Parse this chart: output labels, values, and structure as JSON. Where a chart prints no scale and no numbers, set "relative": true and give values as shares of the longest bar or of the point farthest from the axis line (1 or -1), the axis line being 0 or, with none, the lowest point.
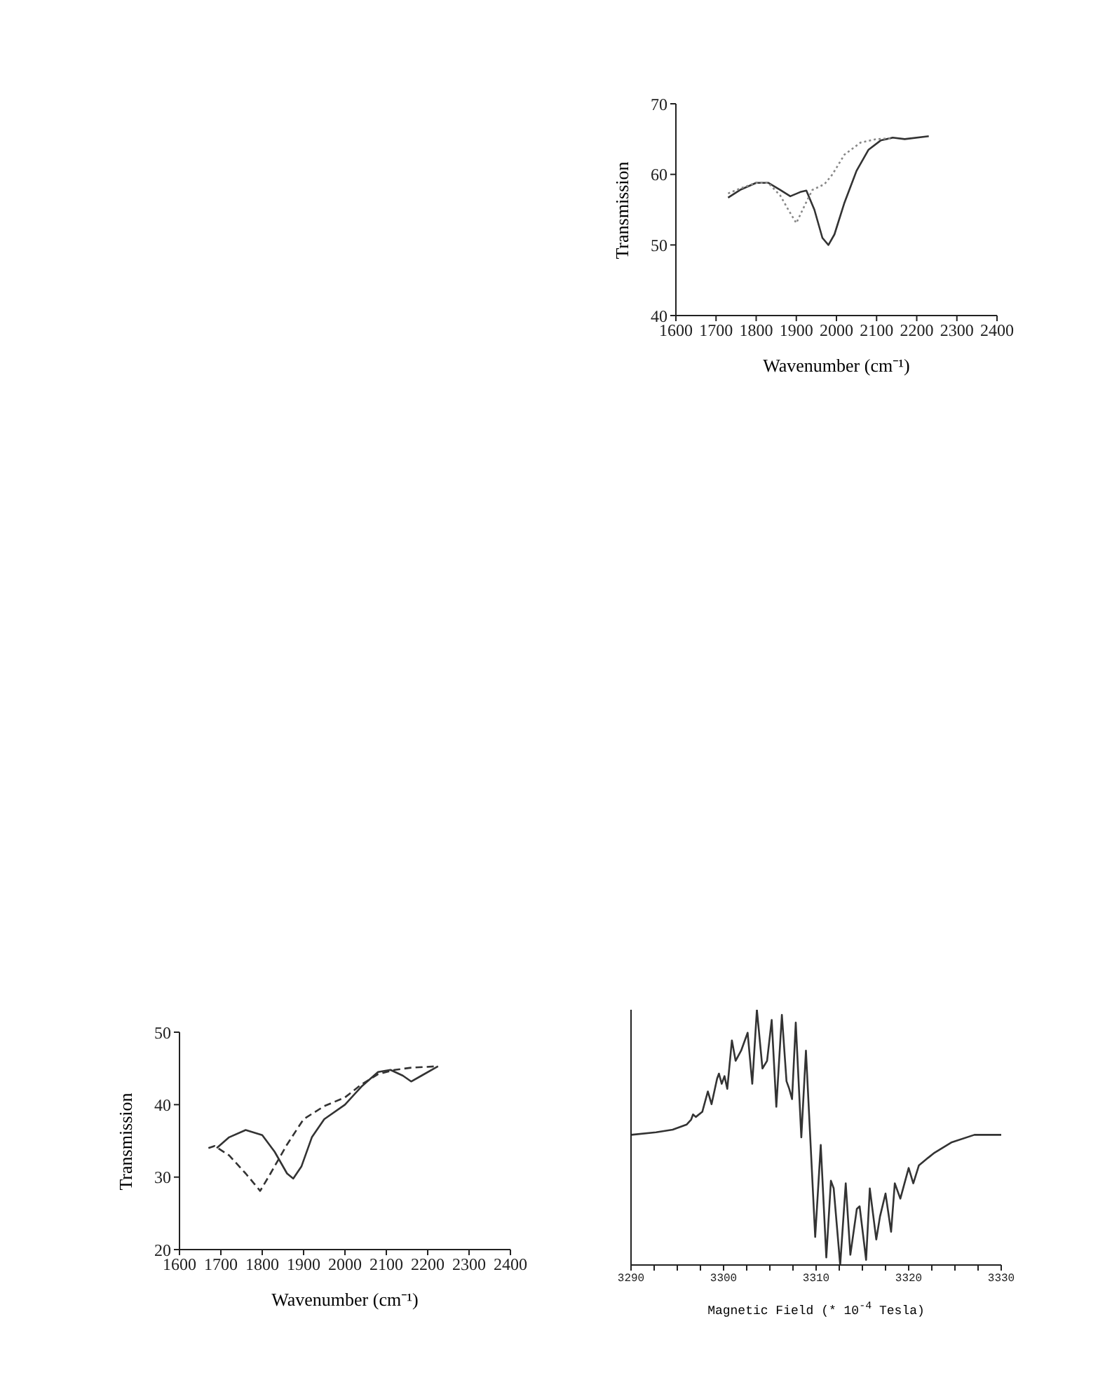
{
  "chart_data": [
    {
      "type": "line",
      "xlabel": "Wavenumber (cm⁻¹)",
      "ylabel": "Transmission",
      "xlim": [
        1600,
        2400
      ],
      "xticks": [
        1600,
        1700,
        1800,
        1900,
        2000,
        2100,
        2200,
        2300,
        2400
      ],
      "ylim": [
        40,
        70
      ],
      "yticks": [
        40,
        50,
        60,
        70
      ],
      "series": [
        {
          "color": "#333333",
          "line_style": "solid",
          "x": [
            1730,
            1760,
            1800,
            1830,
            1860,
            1885,
            1910,
            1925,
            1945,
            1965,
            1980,
            1995,
            2020,
            2050,
            2080,
            2110,
            2140,
            2170,
            2230
          ],
          "values": [
            56.7,
            57.8,
            58.8,
            58.8,
            57.8,
            56.9,
            57.5,
            57.7,
            55,
            51,
            50,
            51.5,
            56,
            60.5,
            63.5,
            64.8,
            65.2,
            65,
            65.4
          ]
        },
        {
          "color": "#888888",
          "line_style": "dotted",
          "x": [
            1730,
            1760,
            1800,
            1830,
            1860,
            1880,
            1900,
            1920,
            1940,
            1970,
            1990,
            2020,
            2060,
            2100,
            2140
          ],
          "values": [
            57.3,
            58,
            58.8,
            58.8,
            57,
            55,
            53.1,
            55.5,
            57.8,
            58.6,
            60,
            62.8,
            64.5,
            65,
            65.1
          ]
        }
      ]
    },
    {
      "type": "line",
      "xlabel": "Wavenumber (cm⁻¹)",
      "ylabel": "Transmission",
      "xlim": [
        1600,
        2400
      ],
      "xticks": [
        1600,
        1700,
        1800,
        1900,
        2000,
        2100,
        2200,
        2300,
        2400
      ],
      "ylim": [
        20,
        50
      ],
      "yticks": [
        20,
        30,
        40,
        50
      ],
      "series": [
        {
          "color": "#333333",
          "line_style": "solid",
          "x": [
            1690,
            1720,
            1760,
            1800,
            1830,
            1860,
            1875,
            1895,
            1920,
            1950,
            2000,
            2040,
            2080,
            2110,
            2140,
            2160,
            2185,
            2225
          ],
          "values": [
            34,
            35.5,
            36.5,
            35.8,
            33.5,
            30.5,
            29.8,
            31.5,
            35.5,
            38,
            40,
            42.5,
            44.5,
            44.8,
            44,
            43.2,
            44,
            45.3
          ]
        },
        {
          "color": "#333333",
          "line_style": "dashed",
          "x": [
            1670,
            1685,
            1720,
            1760,
            1795,
            1820,
            1860,
            1900,
            1950,
            2000,
            2040,
            2080,
            2120,
            2160,
            2225
          ],
          "values": [
            34,
            34.3,
            33,
            30.5,
            28.1,
            30.5,
            34.5,
            38,
            39.8,
            41,
            42.8,
            44.2,
            44.8,
            45.1,
            45.3
          ]
        }
      ]
    },
    {
      "type": "line",
      "relative": true,
      "tick_labels": "x",
      "xlabel": "Magnetic Field (* 10$^{-4}$ Tesla)",
      "xlim": [
        3290,
        3330
      ],
      "xticks": [
        3290,
        {
          "value": 3292.5,
          "label": null
        },
        {
          "value": 3295,
          "label": null
        },
        {
          "value": 3297.5,
          "label": null
        },
        3300,
        {
          "value": 3302.5,
          "label": null
        },
        {
          "value": 3305,
          "label": null
        },
        {
          "value": 3307.5,
          "label": null
        },
        3310,
        {
          "value": 3312.5,
          "label": null
        },
        {
          "value": 3315,
          "label": null
        },
        {
          "value": 3317.5,
          "label": null
        },
        3320,
        {
          "value": 3322.5,
          "label": null
        },
        {
          "value": 3325,
          "label": null
        },
        {
          "value": 3327.5,
          "label": null
        },
        3330
      ],
      "series": [
        {
          "color": "#333333",
          "x": [
            3290,
            3292.7,
            3294.5,
            3296.0,
            3296.5,
            3296.7,
            3297.0,
            3297.7,
            3298.3,
            3298.7,
            3299.3,
            3299.5,
            3299.8,
            3300.1,
            3300.4,
            3300.9,
            3301.3,
            3301.9,
            3302.6,
            3303.1,
            3303.6,
            3304.2,
            3304.7,
            3305.2,
            3305.7,
            3306.3,
            3306.8,
            3307.1,
            3307.4,
            3307.8,
            3308.4,
            3308.9,
            3309.9,
            3310.5,
            3311.1,
            3311.6,
            3311.9,
            3312.6,
            3313.2,
            3313.7,
            3314.4,
            3314.7,
            3315.4,
            3315.8,
            3316.5,
            3316.9,
            3317.5,
            3318.1,
            3318.5,
            3319.1,
            3320.0,
            3320.5,
            3321.1,
            3322.1,
            3322.8,
            3324.6,
            3327.1,
            3330
          ],
          "values": [
            0.51,
            0.52,
            0.53,
            0.55,
            0.57,
            0.59,
            0.58,
            0.6,
            0.68,
            0.63,
            0.73,
            0.75,
            0.71,
            0.74,
            0.69,
            0.88,
            0.8,
            0.84,
            0.91,
            0.71,
            1,
            0.77,
            0.8,
            0.96,
            0.62,
            0.98,
            0.72,
            0.69,
            0.65,
            0.95,
            0.5,
            0.84,
            0.11,
            0.47,
            0.03,
            0.33,
            0.3,
            0,
            0.32,
            0.04,
            0.22,
            0.23,
            0.02,
            0.3,
            0.1,
            0.19,
            0.28,
            0.13,
            0.32,
            0.26,
            0.38,
            0.32,
            0.39,
            0.42,
            0.44,
            0.48,
            0.51,
            0.51
          ]
        }
      ]
    }
  ]
}
